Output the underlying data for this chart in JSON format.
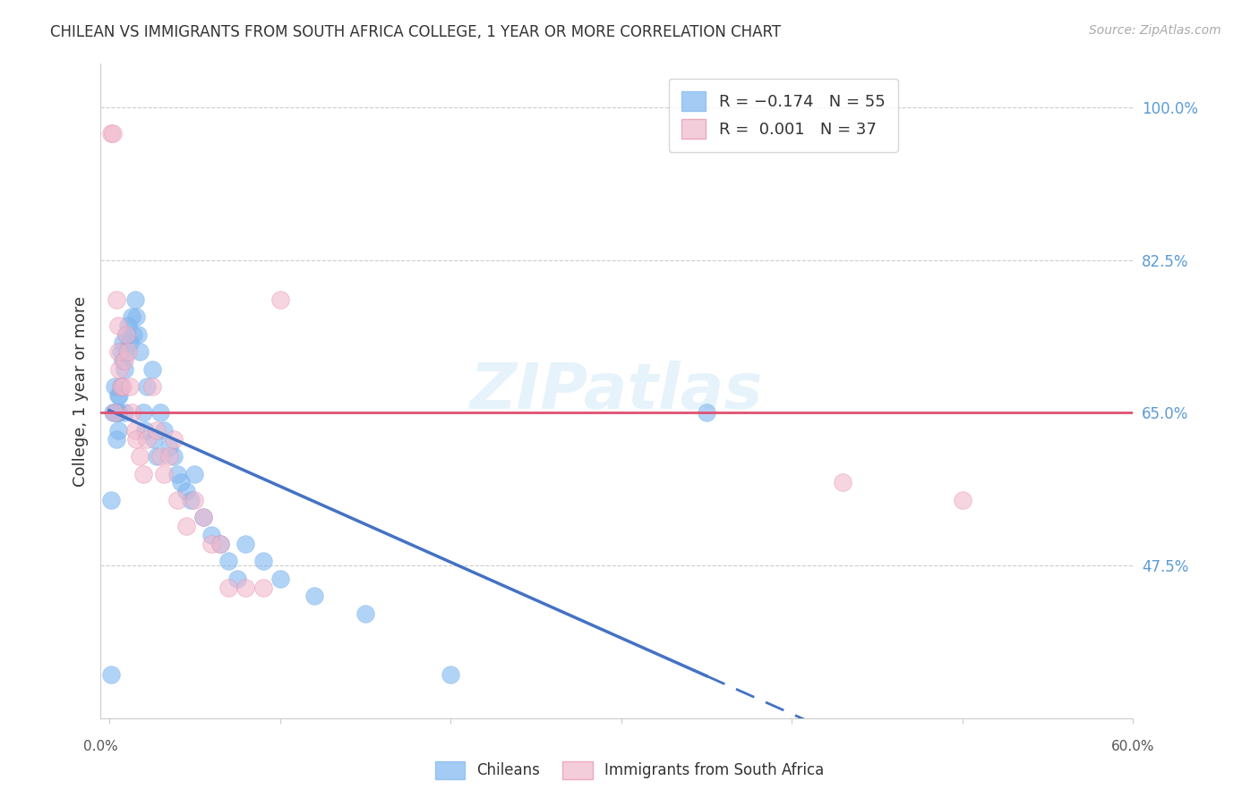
{
  "title": "CHILEAN VS IMMIGRANTS FROM SOUTH AFRICA COLLEGE, 1 YEAR OR MORE CORRELATION CHART",
  "source": "Source: ZipAtlas.com",
  "ylabel": "College, 1 year or more",
  "ytick_labels": [
    "100.0%",
    "82.5%",
    "65.0%",
    "47.5%"
  ],
  "ytick_values": [
    1.0,
    0.825,
    0.65,
    0.475
  ],
  "chilean_color": "#7eb6f0",
  "immigrant_color": "#f0b8cc",
  "immigrant_edge_color": "#e890aa",
  "trend_blue": "#4472c4",
  "trend_pink": "#e05070",
  "chilean_R": -0.174,
  "chilean_N": 55,
  "immigrant_R": 0.001,
  "immigrant_N": 37,
  "xlim": [
    0.0,
    0.6
  ],
  "ylim": [
    0.3,
    1.05
  ],
  "background_color": "#ffffff",
  "grid_color": "#cccccc",
  "watermark": "ZIPatlas",
  "chilean_x": [
    0.001,
    0.001,
    0.002,
    0.003,
    0.003,
    0.004,
    0.004,
    0.005,
    0.005,
    0.005,
    0.006,
    0.006,
    0.007,
    0.007,
    0.008,
    0.008,
    0.009,
    0.009,
    0.01,
    0.01,
    0.011,
    0.012,
    0.013,
    0.014,
    0.015,
    0.016,
    0.017,
    0.018,
    0.02,
    0.021,
    0.022,
    0.025,
    0.026,
    0.028,
    0.03,
    0.032,
    0.035,
    0.038,
    0.04,
    0.042,
    0.045,
    0.048,
    0.05,
    0.055,
    0.06,
    0.065,
    0.07,
    0.075,
    0.08,
    0.09,
    0.1,
    0.12,
    0.15,
    0.2,
    0.35
  ],
  "chilean_y": [
    0.35,
    0.55,
    0.65,
    0.65,
    0.68,
    0.62,
    0.65,
    0.65,
    0.63,
    0.67,
    0.65,
    0.67,
    0.72,
    0.68,
    0.71,
    0.73,
    0.7,
    0.65,
    0.72,
    0.74,
    0.75,
    0.73,
    0.76,
    0.74,
    0.78,
    0.76,
    0.74,
    0.72,
    0.65,
    0.63,
    0.68,
    0.7,
    0.62,
    0.6,
    0.65,
    0.63,
    0.61,
    0.6,
    0.58,
    0.57,
    0.56,
    0.55,
    0.58,
    0.53,
    0.51,
    0.5,
    0.48,
    0.46,
    0.5,
    0.48,
    0.46,
    0.44,
    0.42,
    0.35,
    0.65
  ],
  "immigrant_x": [
    0.001,
    0.002,
    0.003,
    0.004,
    0.005,
    0.005,
    0.006,
    0.007,
    0.008,
    0.009,
    0.01,
    0.011,
    0.012,
    0.013,
    0.015,
    0.016,
    0.018,
    0.02,
    0.022,
    0.025,
    0.028,
    0.03,
    0.032,
    0.035,
    0.038,
    0.04,
    0.045,
    0.05,
    0.055,
    0.06,
    0.065,
    0.07,
    0.08,
    0.09,
    0.1,
    0.43,
    0.5
  ],
  "immigrant_y": [
    0.97,
    0.97,
    0.65,
    0.78,
    0.75,
    0.72,
    0.7,
    0.68,
    0.68,
    0.71,
    0.74,
    0.72,
    0.68,
    0.65,
    0.63,
    0.62,
    0.6,
    0.58,
    0.62,
    0.68,
    0.63,
    0.6,
    0.58,
    0.6,
    0.62,
    0.55,
    0.52,
    0.55,
    0.53,
    0.5,
    0.5,
    0.45,
    0.45,
    0.45,
    0.78,
    0.57,
    0.55
  ]
}
